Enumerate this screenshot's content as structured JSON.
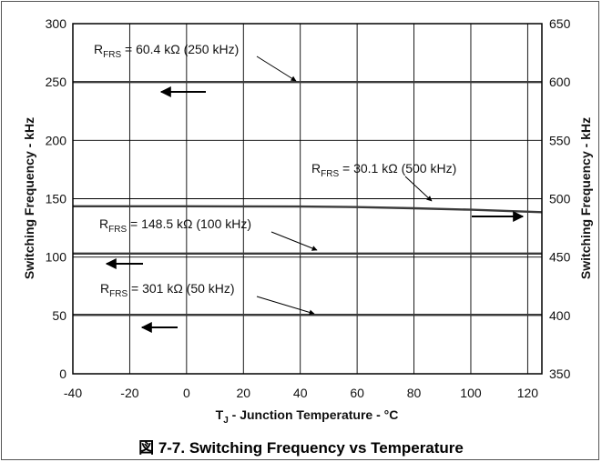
{
  "chart_data": {
    "type": "line",
    "caption": "図 7-7. Switching Frequency vs Temperature",
    "xlabel_main": "T",
    "xlabel_sub": "J",
    "xlabel_rest": " - Junction Temperature - °C",
    "ylabel_left": "Switching Frequency - kHz",
    "ylabel_right": "Switching Frequency - kHz",
    "xlim": [
      -40,
      125
    ],
    "ylim_left": [
      0,
      300
    ],
    "ylim_right": [
      350,
      650
    ],
    "x_ticks": [
      "-40",
      "-20",
      "0",
      "20",
      "40",
      "60",
      "80",
      "100",
      "120"
    ],
    "y_left_ticks": [
      "0",
      "50",
      "100",
      "150",
      "200",
      "250",
      "300"
    ],
    "y_right_ticks": [
      "350",
      "400",
      "450",
      "500",
      "550",
      "600",
      "650"
    ],
    "grid": true,
    "series": [
      {
        "label_prefix": "R",
        "label_sub": "FRS",
        "label_rest": " = 60.4 kΩ (250 kHz)",
        "axis": "left",
        "x": [
          -40,
          125
        ],
        "y": [
          250,
          250
        ]
      },
      {
        "label_prefix": "R",
        "label_sub": "FRS",
        "label_rest": " = 30.1 kΩ (500 kHz)",
        "axis": "right",
        "x": [
          -40,
          0,
          40,
          60,
          80,
          100,
          125
        ],
        "y": [
          493.5,
          493.5,
          493.3,
          492.8,
          491.8,
          490.6,
          488.5
        ]
      },
      {
        "label_prefix": "R",
        "label_sub": "FRS",
        "label_rest": " = 148.5 kΩ (100 kHz)",
        "axis": "left",
        "x": [
          -40,
          125
        ],
        "y": [
          103,
          103
        ]
      },
      {
        "label_prefix": "R",
        "label_sub": "FRS",
        "label_rest": " = 301 kΩ (50 kHz)",
        "axis": "left",
        "x": [
          -40,
          125
        ],
        "y": [
          50.5,
          50.5
        ]
      }
    ]
  }
}
